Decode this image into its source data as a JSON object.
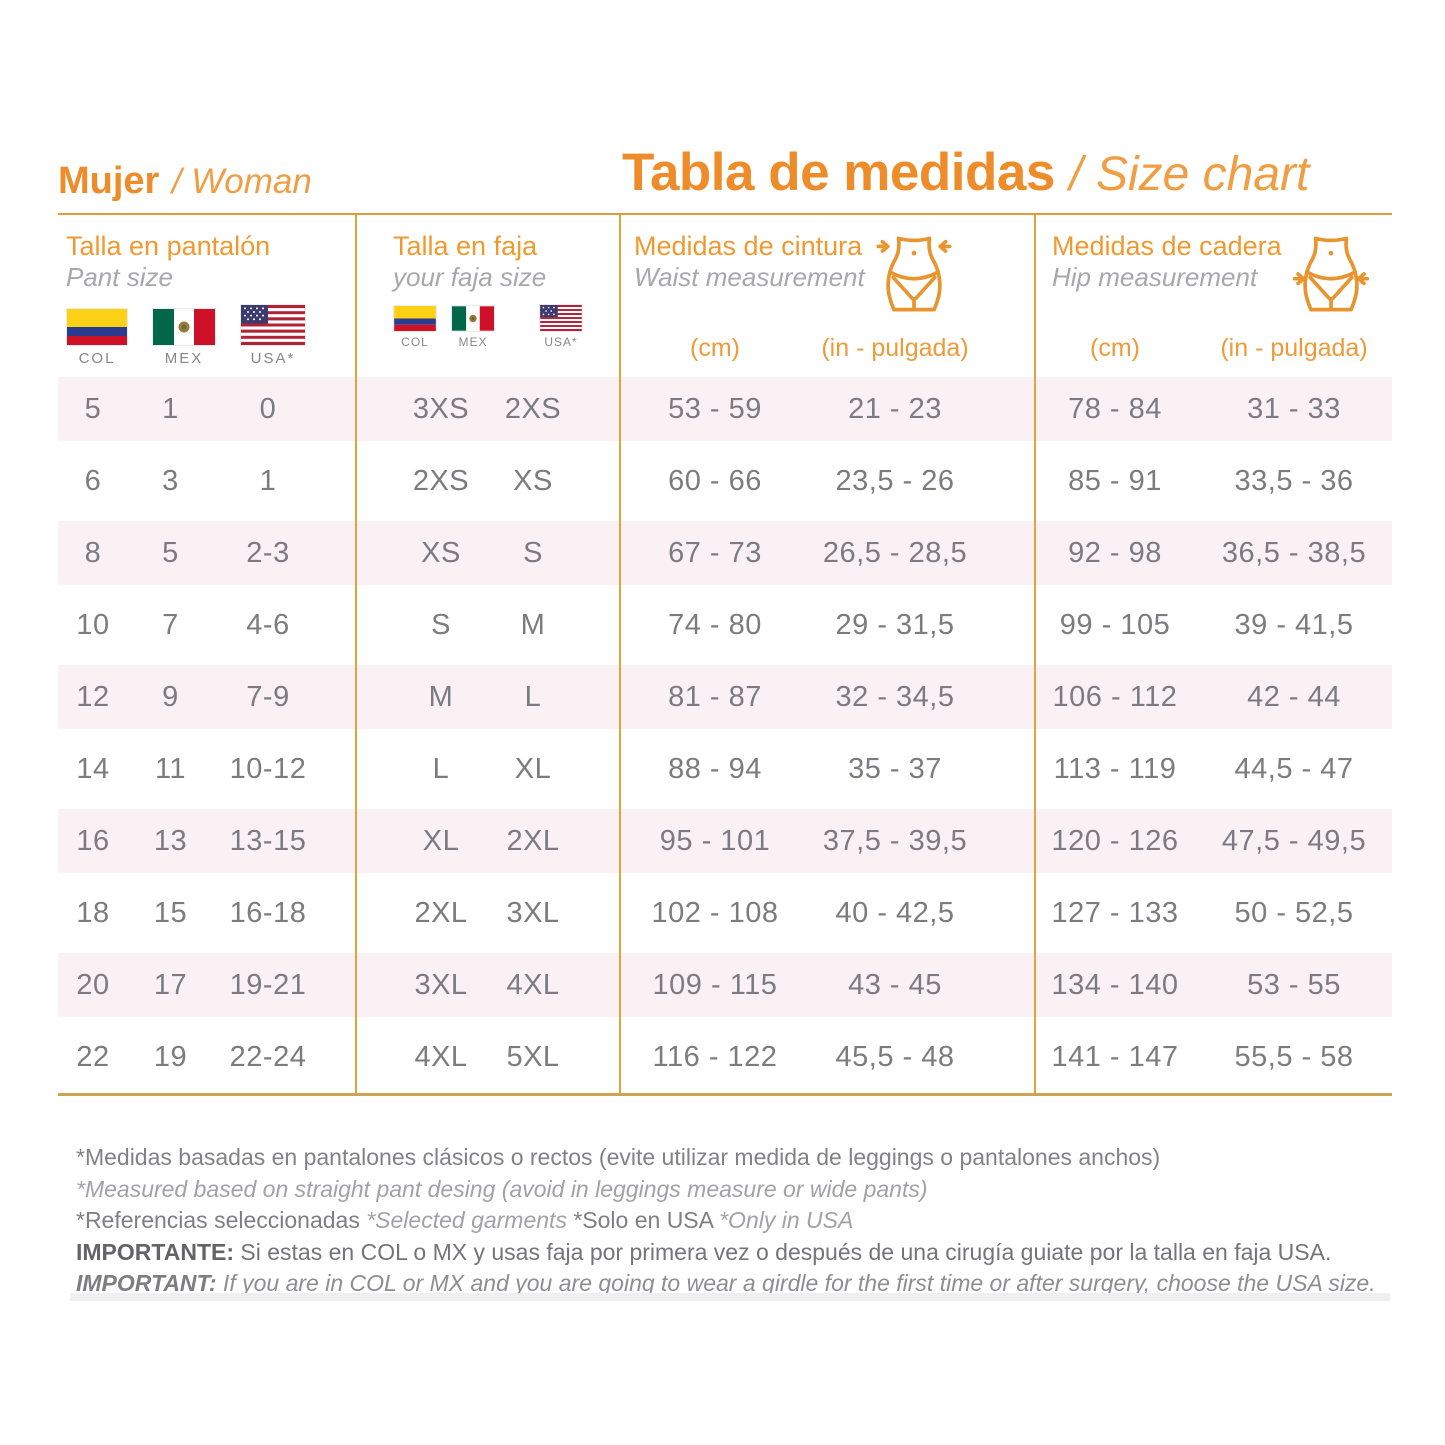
{
  "page": {
    "heading_left_bold": "Mujer",
    "heading_left_italic": "/ Woman",
    "title_bold": "Tabla de medidas",
    "title_italic": "/ Size chart"
  },
  "colors": {
    "accent_orange": "#ED8C28",
    "accent_orange_light": "#F09E43",
    "table_line_gold": "#E2A23E",
    "row_band_pink": "#FAF1F5",
    "data_text_gray": "#7C7B80"
  },
  "columns": [
    {
      "title": "Talla en pantalón",
      "subtitle": "Pant size",
      "flags": [
        "COL",
        "MEX",
        "USA*"
      ]
    },
    {
      "title": "Talla en faja",
      "subtitle": "your faja size",
      "flags": [
        "COL",
        "MEX",
        "USA*"
      ]
    },
    {
      "title": "Medidas de cintura",
      "subtitle": "Waist measurement",
      "icon": "waist-measure-icon",
      "units": [
        "(cm)",
        "(in - pulgada)"
      ]
    },
    {
      "title": "Medidas de cadera",
      "subtitle": "Hip measurement",
      "icon": "hip-measure-icon",
      "units": [
        "(cm)",
        "(in - pulgada)"
      ]
    }
  ],
  "chart_data": {
    "type": "table",
    "title": "Tabla de medidas / Size chart (Mujer / Woman)",
    "columns": [
      "Pant size COL",
      "Pant size MEX",
      "Pant size USA*",
      "Faja size COL/MEX",
      "Faja size USA*",
      "Waist (cm)",
      "Waist (in - pulgada)",
      "Hip (cm)",
      "Hip (in - pulgada)"
    ],
    "rows": [
      [
        "5",
        "1",
        "0",
        "3XS",
        "2XS",
        "53 - 59",
        "21 - 23",
        "78 - 84",
        "31 - 33"
      ],
      [
        "6",
        "3",
        "1",
        "2XS",
        "XS",
        "60 - 66",
        "23,5 - 26",
        "85 - 91",
        "33,5 - 36"
      ],
      [
        "8",
        "5",
        "2-3",
        "XS",
        "S",
        "67 - 73",
        "26,5 - 28,5",
        "92 - 98",
        "36,5 - 38,5"
      ],
      [
        "10",
        "7",
        "4-6",
        "S",
        "M",
        "74 - 80",
        "29 - 31,5",
        "99 - 105",
        "39 - 41,5"
      ],
      [
        "12",
        "9",
        "7-9",
        "M",
        "L",
        "81 - 87",
        "32 - 34,5",
        "106 - 112",
        "42 - 44"
      ],
      [
        "14",
        "11",
        "10-12",
        "L",
        "XL",
        "88 - 94",
        "35 - 37",
        "113 - 119",
        "44,5 - 47"
      ],
      [
        "16",
        "13",
        "13-15",
        "XL",
        "2XL",
        "95 - 101",
        "37,5 - 39,5",
        "120 - 126",
        "47,5 - 49,5"
      ],
      [
        "18",
        "15",
        "16-18",
        "2XL",
        "3XL",
        "102 - 108",
        "40 - 42,5",
        "127 - 133",
        "50 - 52,5"
      ],
      [
        "20",
        "17",
        "19-21",
        "3XL",
        "4XL",
        "109 - 115",
        "43 - 45",
        "134 - 140",
        "53 - 55"
      ],
      [
        "22",
        "19",
        "22-24",
        "4XL",
        "5XL",
        "116 - 122",
        "45,5 - 48",
        "141 - 147",
        "55,5 - 58"
      ]
    ]
  },
  "footnotes": {
    "line1": "*Medidas basadas en pantalones clásicos o rectos (evite utilizar medida de leggings o pantalones anchos)",
    "line2": "*Measured based on straight pant desing (avoid in leggings measure or wide pants)",
    "line3_a": "*Referencias seleccionadas ",
    "line3_b": "*Selected garments ",
    "line3_c": "*Solo en USA ",
    "line3_d": "*Only in USA",
    "line4_label": "IMPORTANTE:",
    "line4_text": " Si estas en COL o MX y usas faja por primera vez o después de una cirugía guiate por la talla en faja USA.",
    "line5_label": "IMPORTANT:",
    "line5_text": " If you are in COL or MX and you are going to wear a girdle for the first time or after surgery, choose the USA size."
  }
}
